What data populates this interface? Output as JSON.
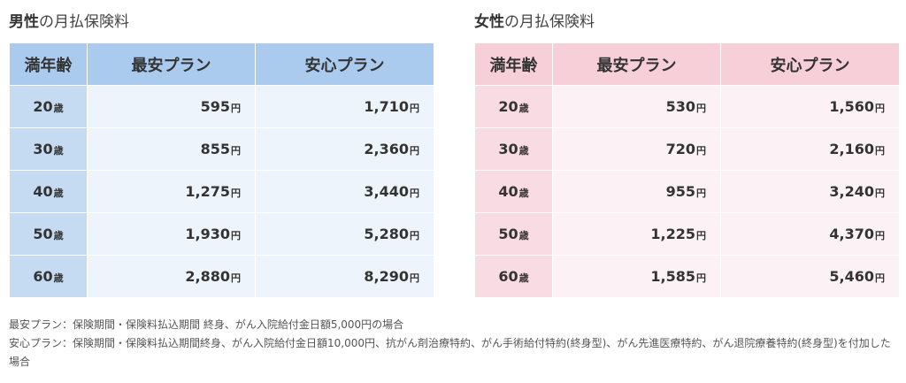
{
  "male": {
    "title_strong": "男性",
    "title_rest": "の月払保険料",
    "headers": [
      "満年齢",
      "最安プラン",
      "安心プラン"
    ],
    "rows": [
      {
        "age": "20",
        "age_unit": "歳",
        "cheap": "595",
        "safe": "1,710"
      },
      {
        "age": "30",
        "age_unit": "歳",
        "cheap": "855",
        "safe": "2,360"
      },
      {
        "age": "40",
        "age_unit": "歳",
        "cheap": "1,275",
        "safe": "3,440"
      },
      {
        "age": "50",
        "age_unit": "歳",
        "cheap": "1,930",
        "safe": "5,280"
      },
      {
        "age": "60",
        "age_unit": "歳",
        "cheap": "2,880",
        "safe": "8,290"
      }
    ]
  },
  "female": {
    "title_strong": "女性",
    "title_rest": "の月払保険料",
    "headers": [
      "満年齢",
      "最安プラン",
      "安心プラン"
    ],
    "rows": [
      {
        "age": "20",
        "age_unit": "歳",
        "cheap": "530",
        "safe": "1,560"
      },
      {
        "age": "30",
        "age_unit": "歳",
        "cheap": "720",
        "safe": "2,160"
      },
      {
        "age": "40",
        "age_unit": "歳",
        "cheap": "955",
        "safe": "3,240"
      },
      {
        "age": "50",
        "age_unit": "歳",
        "cheap": "1,225",
        "safe": "4,370"
      },
      {
        "age": "60",
        "age_unit": "歳",
        "cheap": "1,585",
        "safe": "5,460"
      }
    ]
  },
  "currency_unit": "円",
  "colors": {
    "male_header": "#aacbee",
    "male_age_cell": "#c5dbf2",
    "male_value_cell": "#eef4fb",
    "female_header": "#f7cfd9",
    "female_age_cell": "#f9dbe3",
    "female_value_cell": "#fcf1f4"
  },
  "notes": [
    "最安プラン：保険期間・保険料払込期間 終身、がん入院給付金日額5,000円の場合",
    "安心プラン：保険期間・保険料払込期間終身、がん入院給付金日額10,000円、抗がん剤治療特約、がん手術給付特約(終身型)、がん先進医療特約、がん退院療養特約(終身型)を付加した場合"
  ]
}
